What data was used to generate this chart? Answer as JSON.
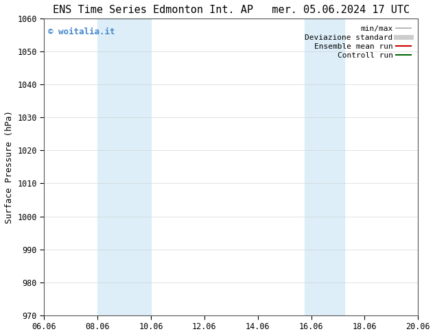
{
  "title_left": "ENS Time Series Edmonton Int. AP",
  "title_right": "mer. 05.06.2024 17 UTC",
  "ylabel": "Surface Pressure (hPa)",
  "ylim": [
    970,
    1060
  ],
  "yticks": [
    970,
    980,
    990,
    1000,
    1010,
    1020,
    1030,
    1040,
    1050,
    1060
  ],
  "xtick_labels": [
    "06.06",
    "08.06",
    "10.06",
    "12.06",
    "14.06",
    "16.06",
    "18.06",
    "20.06"
  ],
  "xtick_positions": [
    0,
    2,
    4,
    6,
    8,
    10,
    12,
    14
  ],
  "xlim": [
    0,
    14
  ],
  "shaded_bands": [
    {
      "x_start": 2.0,
      "x_end": 4.0
    },
    {
      "x_start": 9.75,
      "x_end": 11.25
    }
  ],
  "shaded_color": "#ddeef8",
  "watermark_text": "© woitalia.it",
  "watermark_color": "#4488cc",
  "legend_items": [
    {
      "label": "min/max",
      "color": "#aaaaaa",
      "lw": 1.2
    },
    {
      "label": "Deviazione standard",
      "color": "#cccccc",
      "lw": 5
    },
    {
      "label": "Ensemble mean run",
      "color": "#cc0000",
      "lw": 1.5
    },
    {
      "label": "Controll run",
      "color": "#006600",
      "lw": 1.5
    }
  ],
  "bg_color": "#ffffff",
  "font_family": "DejaVu Sans Mono",
  "title_fontsize": 11,
  "label_fontsize": 9,
  "tick_fontsize": 8.5,
  "legend_fontsize": 8,
  "watermark_fontsize": 9
}
